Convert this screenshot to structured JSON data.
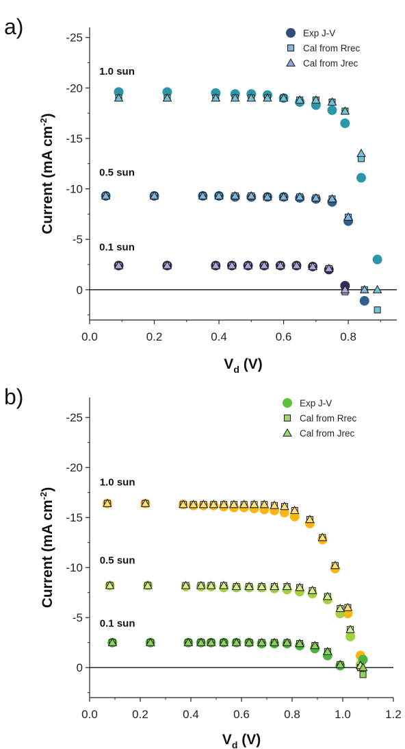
{
  "chart_data": [
    {
      "type": "scatter",
      "panel_label": "a)",
      "xlabel_main": "V",
      "xlabel_sub": "d",
      "xlabel_unit": "(V)",
      "ylabel_main": "Current (mA cm",
      "ylabel_sup": "-2",
      "ylabel_tail": ")",
      "xlim": [
        0.0,
        0.95
      ],
      "ylim": [
        3,
        -26
      ],
      "y_inverted": true,
      "xticks": [
        0.0,
        0.2,
        0.4,
        0.6,
        0.8
      ],
      "xtick_labels": [
        "0.0",
        "0.2",
        "0.4",
        "0.6",
        "0.8"
      ],
      "yticks": [
        -25,
        -20,
        -15,
        -10,
        -5,
        0
      ],
      "ytick_labels": [
        "-25",
        "-20",
        "-15",
        "-10",
        "-5",
        "0"
      ],
      "zero_line": true,
      "grid": false,
      "legend_position": "top-right",
      "legend": [
        {
          "label": "Exp J-V",
          "marker": "circle",
          "color": "#2f4f7a"
        },
        {
          "label": "Cal from Rrec",
          "marker": "square",
          "color": "#7fb8dc"
        },
        {
          "label": "Cal from Jrec",
          "marker": "triangle",
          "color": "#8da3d2"
        }
      ],
      "annotations": [
        {
          "text": "1.0 sun",
          "x": 0.03,
          "y": -21.3
        },
        {
          "text": "0.5 sun",
          "x": 0.03,
          "y": -11.3
        },
        {
          "text": "0.1 sun",
          "x": 0.03,
          "y": -3.9
        }
      ],
      "series": [
        {
          "name": "Exp J-V",
          "group": "1.0 sun",
          "marker": "circle",
          "color": "#2a97a8",
          "x": [
            0.09,
            0.24,
            0.39,
            0.45,
            0.5,
            0.55,
            0.6,
            0.65,
            0.7,
            0.75,
            0.79,
            0.84,
            0.89
          ],
          "y": [
            -19.6,
            -19.6,
            -19.5,
            -19.4,
            -19.4,
            -19.3,
            -19.0,
            -18.6,
            -18.3,
            -17.8,
            -16.5,
            -11.1,
            -3.0
          ]
        },
        {
          "name": "Cal from Rrec",
          "group": "1.0 sun",
          "marker": "square",
          "color": "#6ec3d6",
          "x": [
            0.09,
            0.24,
            0.39,
            0.45,
            0.5,
            0.55,
            0.6,
            0.65,
            0.7,
            0.75,
            0.79,
            0.84,
            0.89
          ],
          "y": [
            -19.0,
            -19.0,
            -19.0,
            -19.0,
            -19.0,
            -19.0,
            -19.0,
            -18.8,
            -18.8,
            -18.6,
            -17.7,
            -13.0,
            2.0
          ]
        },
        {
          "name": "Cal from Jrec",
          "group": "1.0 sun",
          "marker": "triangle",
          "color": "#6ec3d6",
          "x": [
            0.09,
            0.24,
            0.39,
            0.45,
            0.5,
            0.55,
            0.6,
            0.65,
            0.7,
            0.75,
            0.79,
            0.84,
            0.89
          ],
          "y": [
            -19.0,
            -19.0,
            -19.0,
            -19.0,
            -19.0,
            -19.0,
            -19.0,
            -18.8,
            -18.8,
            -18.6,
            -17.7,
            -13.5,
            0.0
          ]
        },
        {
          "name": "Exp J-V",
          "group": "0.5 sun",
          "marker": "circle",
          "color": "#2e5f8d",
          "x": [
            0.05,
            0.2,
            0.35,
            0.4,
            0.45,
            0.5,
            0.55,
            0.6,
            0.65,
            0.7,
            0.75,
            0.8,
            0.85
          ],
          "y": [
            -9.3,
            -9.3,
            -9.3,
            -9.3,
            -9.2,
            -9.2,
            -9.2,
            -9.2,
            -9.1,
            -9.0,
            -8.7,
            -6.8,
            1.1
          ]
        },
        {
          "name": "Cal from Rrec",
          "group": "0.5 sun",
          "marker": "square",
          "color": "#7fb8dc",
          "x": [
            0.05,
            0.2,
            0.35,
            0.4,
            0.45,
            0.5,
            0.55,
            0.6,
            0.65,
            0.7,
            0.75,
            0.8,
            0.85
          ],
          "y": [
            -9.3,
            -9.3,
            -9.3,
            -9.3,
            -9.3,
            -9.3,
            -9.2,
            -9.2,
            -9.2,
            -9.1,
            -9.0,
            -7.2,
            0.0
          ]
        },
        {
          "name": "Cal from Jrec",
          "group": "0.5 sun",
          "marker": "triangle",
          "color": "#7fb8dc",
          "x": [
            0.05,
            0.2,
            0.35,
            0.4,
            0.45,
            0.5,
            0.55,
            0.6,
            0.65,
            0.7,
            0.75,
            0.8,
            0.85
          ],
          "y": [
            -9.3,
            -9.3,
            -9.3,
            -9.3,
            -9.3,
            -9.3,
            -9.2,
            -9.2,
            -9.2,
            -9.1,
            -9.0,
            -7.2,
            0.0
          ]
        },
        {
          "name": "Exp J-V",
          "group": "0.1 sun",
          "marker": "circle",
          "color": "#352c55",
          "x": [
            0.09,
            0.24,
            0.39,
            0.44,
            0.49,
            0.54,
            0.59,
            0.64,
            0.69,
            0.74,
            0.79
          ],
          "y": [
            -2.4,
            -2.4,
            -2.4,
            -2.4,
            -2.4,
            -2.4,
            -2.4,
            -2.4,
            -2.3,
            -2.0,
            -0.4
          ]
        },
        {
          "name": "Cal from Rrec",
          "group": "0.1 sun",
          "marker": "square",
          "color": "#b3a3d6",
          "x": [
            0.09,
            0.24,
            0.39,
            0.44,
            0.49,
            0.54,
            0.59,
            0.64,
            0.69,
            0.74,
            0.79
          ],
          "y": [
            -2.4,
            -2.4,
            -2.4,
            -2.4,
            -2.4,
            -2.4,
            -2.4,
            -2.4,
            -2.3,
            -2.1,
            0.2
          ]
        },
        {
          "name": "Cal from Jrec",
          "group": "0.1 sun",
          "marker": "triangle",
          "color": "#b3a3d6",
          "x": [
            0.09,
            0.24,
            0.39,
            0.44,
            0.49,
            0.54,
            0.59,
            0.64,
            0.69,
            0.74,
            0.79
          ],
          "y": [
            -2.4,
            -2.4,
            -2.4,
            -2.4,
            -2.4,
            -2.4,
            -2.4,
            -2.4,
            -2.3,
            -2.1,
            0.0
          ]
        }
      ]
    },
    {
      "type": "scatter",
      "panel_label": "b)",
      "xlabel_main": "V",
      "xlabel_sub": "d",
      "xlabel_unit": "(V)",
      "ylabel_main": "Current (mA cm",
      "ylabel_sup": "-2",
      "ylabel_tail": ")",
      "xlim": [
        0.0,
        1.2
      ],
      "ylim": [
        3,
        -27
      ],
      "y_inverted": true,
      "xticks": [
        0.0,
        0.2,
        0.4,
        0.6,
        0.8,
        1.0,
        1.2
      ],
      "xtick_labels": [
        "0.0",
        "0.2",
        "0.4",
        "0.6",
        "0.8",
        "1.0",
        "1.2"
      ],
      "yticks": [
        -25,
        -20,
        -15,
        -10,
        -5,
        0
      ],
      "ytick_labels": [
        "-25",
        "-20",
        "-15",
        "-10",
        "-5",
        "0"
      ],
      "zero_line": true,
      "grid": false,
      "legend_position": "top-right",
      "legend": [
        {
          "label": "Exp J-V",
          "marker": "circle",
          "color": "#5bc23a"
        },
        {
          "label": "Cal from Rrec",
          "marker": "square",
          "color": "#9fd86a"
        },
        {
          "label": "Cal from Jrec",
          "marker": "triangle",
          "color": "#9fd86a"
        }
      ],
      "annotations": [
        {
          "text": "1.0 sun",
          "x": 0.04,
          "y": -18.2
        },
        {
          "text": "0.5 sun",
          "x": 0.04,
          "y": -10.4
        },
        {
          "text": "0.1 sun",
          "x": 0.04,
          "y": -4.1
        }
      ],
      "series": [
        {
          "name": "Exp J-V",
          "group": "1.0 sun",
          "marker": "circle",
          "color": "#f7b614",
          "x": [
            0.07,
            0.22,
            0.37,
            0.41,
            0.45,
            0.49,
            0.53,
            0.57,
            0.61,
            0.65,
            0.69,
            0.73,
            0.77,
            0.81,
            0.87,
            0.92,
            0.97,
            1.02,
            1.07
          ],
          "y": [
            -16.4,
            -16.4,
            -16.3,
            -16.2,
            -16.2,
            -16.2,
            -16.1,
            -16.0,
            -16.0,
            -15.9,
            -15.8,
            -15.7,
            -15.5,
            -15.1,
            -14.4,
            -12.8,
            -9.9,
            -5.4,
            -1.2
          ]
        },
        {
          "name": "Cal from Rrec",
          "group": "1.0 sun",
          "marker": "square",
          "color": "#fce07a",
          "x": [
            0.07,
            0.22,
            0.37,
            0.41,
            0.45,
            0.49,
            0.53,
            0.57,
            0.61,
            0.65,
            0.69,
            0.73,
            0.77,
            0.81,
            0.87,
            0.92,
            0.97,
            1.02,
            1.07
          ],
          "y": [
            -16.4,
            -16.4,
            -16.3,
            -16.3,
            -16.3,
            -16.3,
            -16.3,
            -16.3,
            -16.3,
            -16.3,
            -16.3,
            -16.2,
            -16.1,
            -15.7,
            -14.8,
            -13.0,
            -10.2,
            -6.0,
            0.0
          ]
        },
        {
          "name": "Cal from Jrec",
          "group": "1.0 sun",
          "marker": "triangle",
          "color": "#fce07a",
          "x": [
            0.07,
            0.22,
            0.37,
            0.41,
            0.45,
            0.49,
            0.53,
            0.57,
            0.61,
            0.65,
            0.69,
            0.73,
            0.77,
            0.81,
            0.87,
            0.92,
            0.97,
            1.02,
            1.07
          ],
          "y": [
            -16.4,
            -16.4,
            -16.3,
            -16.3,
            -16.3,
            -16.3,
            -16.3,
            -16.3,
            -16.3,
            -16.3,
            -16.3,
            -16.2,
            -16.1,
            -15.7,
            -14.8,
            -13.0,
            -10.2,
            -6.0,
            -0.2
          ]
        },
        {
          "name": "Exp J-V",
          "group": "0.5 sun",
          "marker": "circle",
          "color": "#a6d13f",
          "x": [
            0.08,
            0.23,
            0.38,
            0.44,
            0.48,
            0.53,
            0.58,
            0.63,
            0.68,
            0.73,
            0.78,
            0.83,
            0.88,
            0.94,
            0.99,
            1.03,
            1.07
          ],
          "y": [
            -8.2,
            -8.2,
            -8.1,
            -8.1,
            -8.1,
            -8.0,
            -8.0,
            -8.0,
            -8.0,
            -7.9,
            -7.8,
            -7.6,
            -7.4,
            -6.8,
            -5.4,
            -3.1,
            -0.3
          ]
        },
        {
          "name": "Cal from Rrec",
          "group": "0.5 sun",
          "marker": "square",
          "color": "#d7ec9a",
          "x": [
            0.08,
            0.23,
            0.38,
            0.44,
            0.48,
            0.53,
            0.58,
            0.63,
            0.68,
            0.73,
            0.78,
            0.83,
            0.88,
            0.94,
            0.99,
            1.03,
            1.07
          ],
          "y": [
            -8.2,
            -8.2,
            -8.2,
            -8.2,
            -8.2,
            -8.2,
            -8.1,
            -8.1,
            -8.1,
            -8.1,
            -8.1,
            -8.0,
            -7.7,
            -7.1,
            -5.9,
            -3.8,
            0.0
          ]
        },
        {
          "name": "Cal from Jrec",
          "group": "0.5 sun",
          "marker": "triangle",
          "color": "#d7ec9a",
          "x": [
            0.08,
            0.23,
            0.38,
            0.44,
            0.48,
            0.53,
            0.58,
            0.63,
            0.68,
            0.73,
            0.78,
            0.83,
            0.88,
            0.94,
            0.99,
            1.03,
            1.07
          ],
          "y": [
            -8.2,
            -8.2,
            -8.2,
            -8.2,
            -8.2,
            -8.2,
            -8.1,
            -8.1,
            -8.1,
            -8.1,
            -8.1,
            -8.0,
            -7.7,
            -7.1,
            -5.9,
            -3.8,
            -0.2
          ]
        },
        {
          "name": "Exp J-V",
          "group": "0.1 sun",
          "marker": "circle",
          "color": "#4bb43c",
          "x": [
            0.09,
            0.24,
            0.39,
            0.44,
            0.48,
            0.53,
            0.58,
            0.63,
            0.68,
            0.73,
            0.78,
            0.83,
            0.89,
            0.94,
            0.99,
            1.08
          ],
          "y": [
            -2.5,
            -2.5,
            -2.5,
            -2.5,
            -2.5,
            -2.5,
            -2.5,
            -2.5,
            -2.4,
            -2.4,
            -2.4,
            -2.2,
            -1.9,
            -1.2,
            -0.2,
            -0.8
          ]
        },
        {
          "name": "Cal from Rrec",
          "group": "0.1 sun",
          "marker": "square",
          "color": "#8fd05a",
          "x": [
            0.09,
            0.24,
            0.39,
            0.44,
            0.48,
            0.53,
            0.58,
            0.63,
            0.68,
            0.73,
            0.78,
            0.83,
            0.89,
            0.94,
            0.99,
            1.08
          ],
          "y": [
            -2.5,
            -2.5,
            -2.5,
            -2.5,
            -2.5,
            -2.5,
            -2.5,
            -2.5,
            -2.5,
            -2.5,
            -2.5,
            -2.4,
            -2.2,
            -1.6,
            -0.3,
            0.7
          ]
        },
        {
          "name": "Cal from Jrec",
          "group": "0.1 sun",
          "marker": "triangle",
          "color": "#8fd05a",
          "x": [
            0.09,
            0.24,
            0.39,
            0.44,
            0.48,
            0.53,
            0.58,
            0.63,
            0.68,
            0.73,
            0.78,
            0.83,
            0.89,
            0.94,
            0.99,
            1.08
          ],
          "y": [
            -2.5,
            -2.5,
            -2.5,
            -2.5,
            -2.5,
            -2.5,
            -2.5,
            -2.5,
            -2.5,
            -2.5,
            -2.5,
            -2.4,
            -2.2,
            -1.6,
            -0.3,
            0.0
          ]
        }
      ]
    }
  ]
}
